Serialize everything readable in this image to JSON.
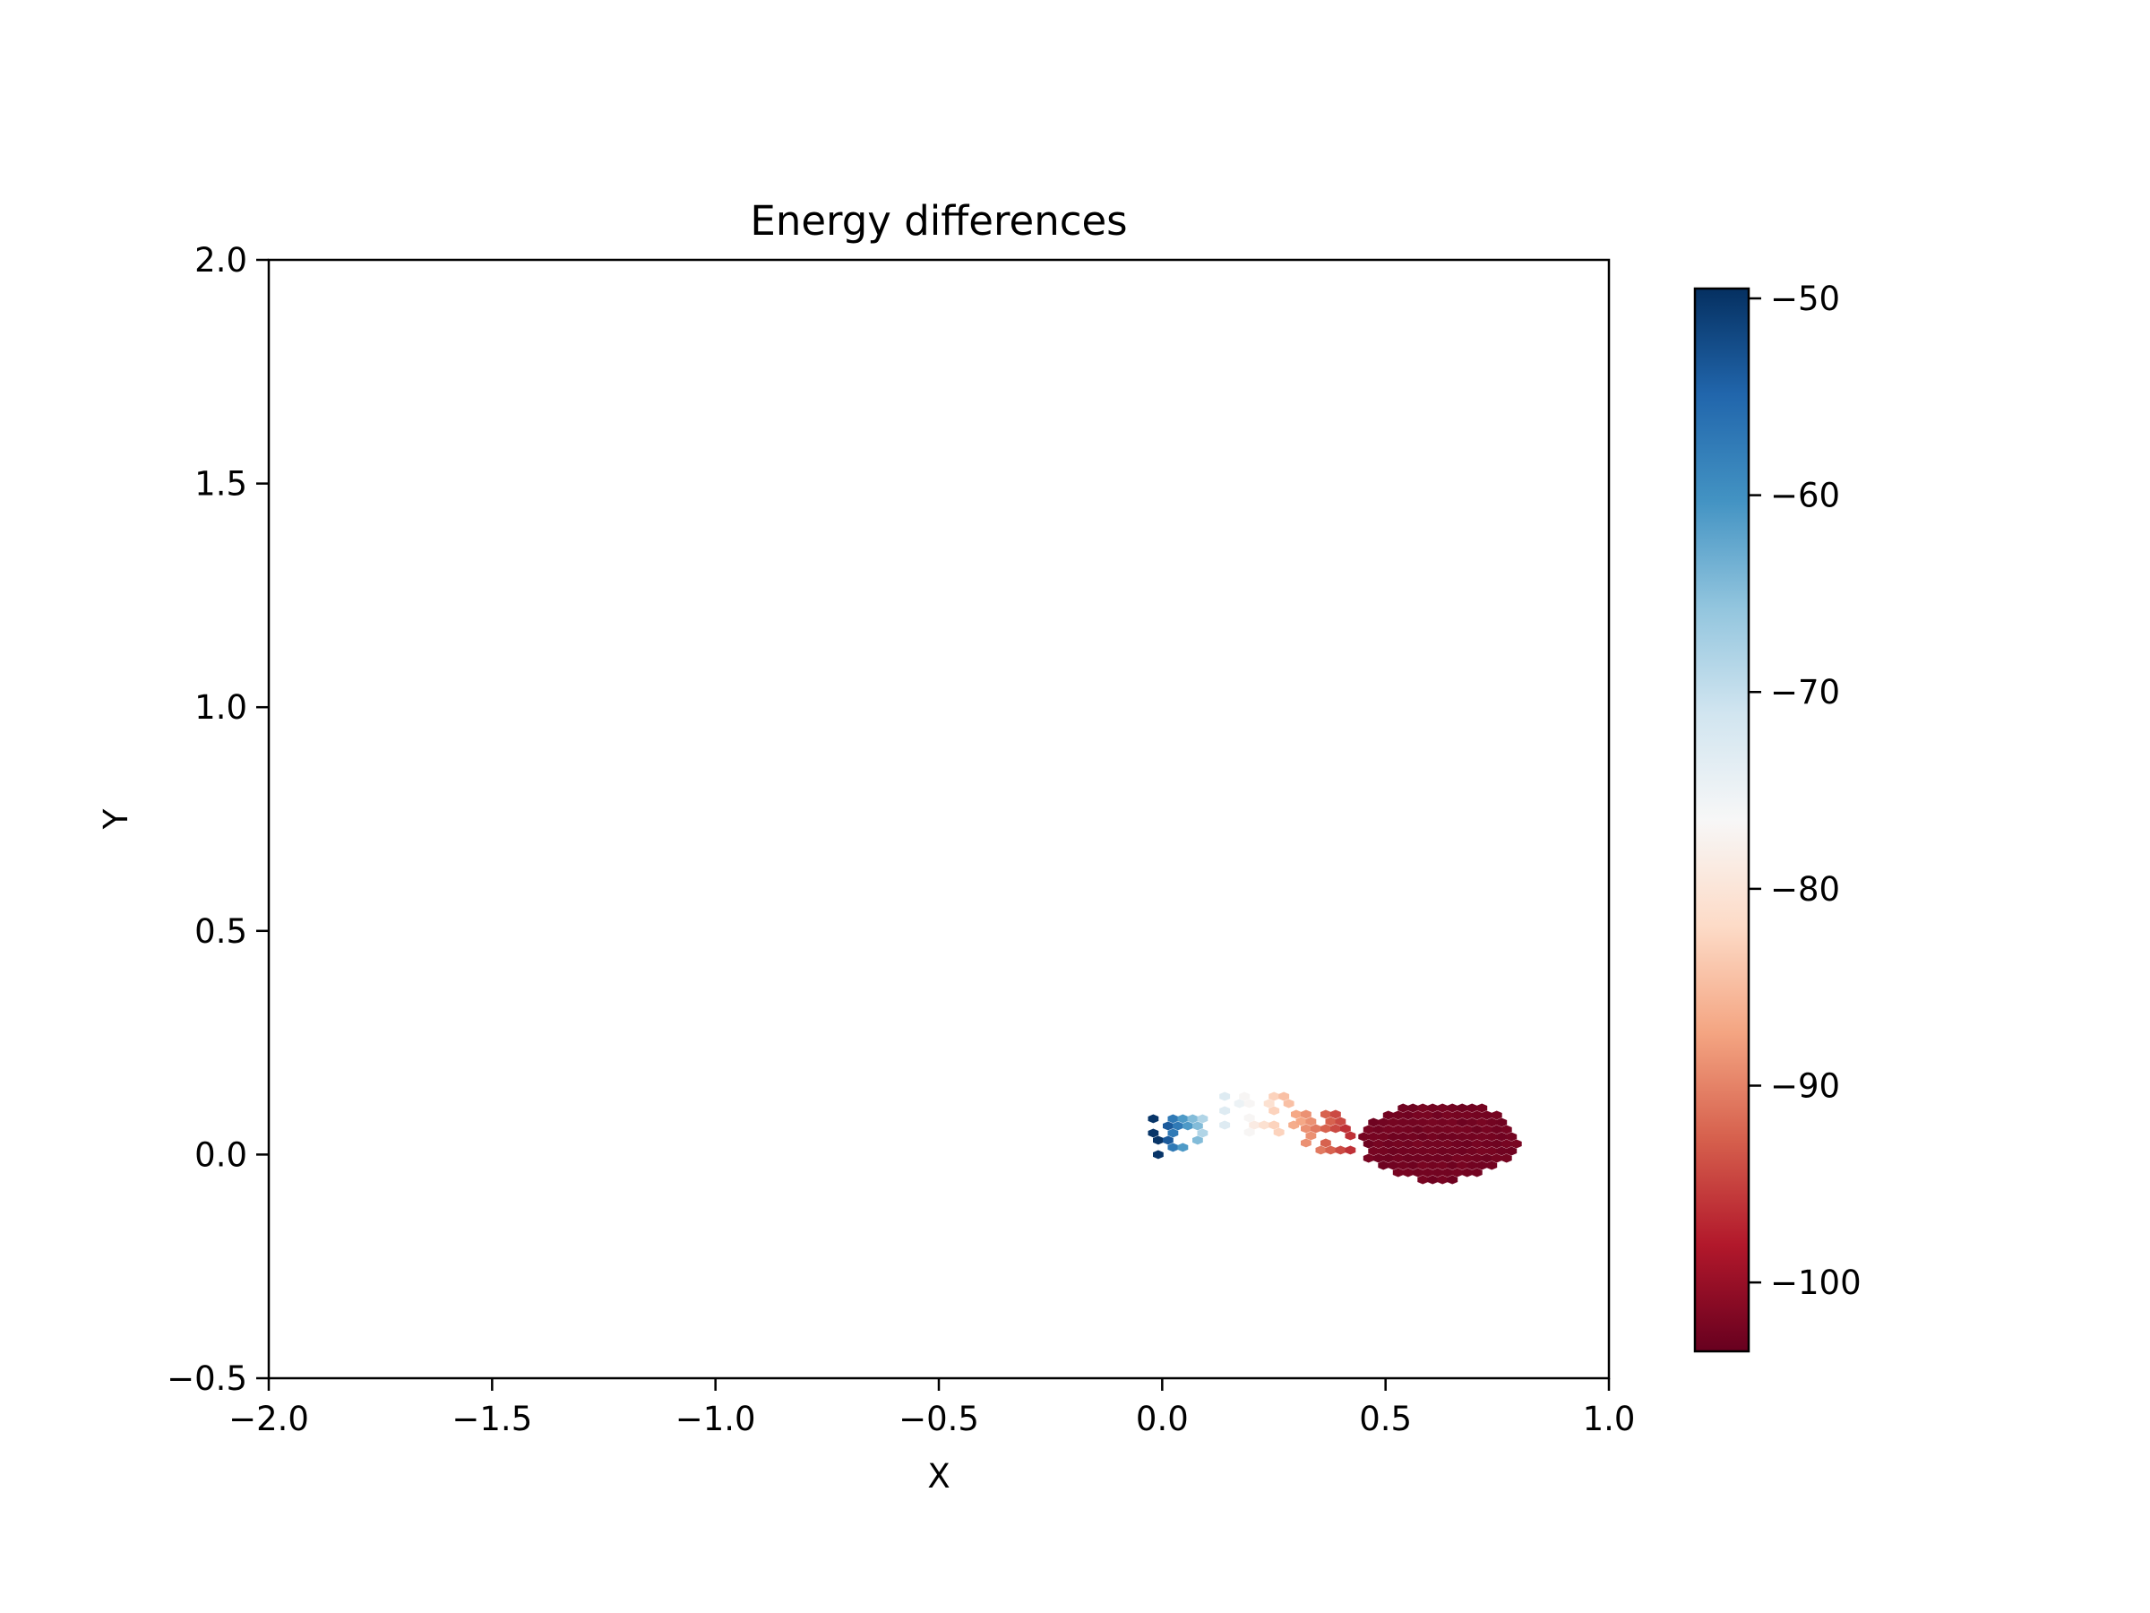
{
  "chart_data": {
    "type": "heatmap",
    "subtype": "hexbin",
    "title": "Energy differences",
    "xlabel": "X",
    "ylabel": "Y",
    "xlim": [
      -2.0,
      1.0
    ],
    "ylim": [
      -0.5,
      2.0
    ],
    "x_ticks": [
      -2.0,
      -1.5,
      -1.0,
      -0.5,
      0.0,
      0.5,
      1.0
    ],
    "x_tick_labels": [
      "−2.0",
      "−1.5",
      "−1.0",
      "−0.5",
      "0.0",
      "0.5",
      "1.0"
    ],
    "y_ticks": [
      -0.5,
      0.0,
      0.5,
      1.0,
      1.5,
      2.0
    ],
    "y_tick_labels": [
      "−0.5",
      "0.0",
      "0.5",
      "1.0",
      "1.5",
      "2.0"
    ],
    "grid": false,
    "colormap": "RdBu",
    "colormap_stops": [
      "#67001f",
      "#b2182b",
      "#d6604d",
      "#f4a582",
      "#fddbc7",
      "#f7f7f7",
      "#d1e5f0",
      "#92c5de",
      "#4393c3",
      "#2166ac",
      "#053061"
    ],
    "colorbar": {
      "range": [
        -103.5,
        -49.5
      ],
      "ticks": [
        -50,
        -60,
        -70,
        -80,
        -90,
        -100
      ],
      "tick_labels": [
        "−50",
        "−60",
        "−70",
        "−80",
        "−90",
        "−100"
      ],
      "placement": "right"
    },
    "clusters": [
      {
        "x": [
          -0.02,
          0.1
        ],
        "y": [
          -0.01,
          0.08
        ],
        "value_start": -50,
        "value_end": -70
      },
      {
        "x": [
          0.14,
          0.3
        ],
        "y": [
          0.04,
          0.13
        ],
        "value_start": -73,
        "value_end": -87
      },
      {
        "x": [
          0.3,
          0.42
        ],
        "y": [
          0.0,
          0.09
        ],
        "value_start": -87,
        "value_end": -97
      },
      {
        "center": [
          0.62,
          0.03
        ],
        "radius_x": 0.18,
        "radius_y": 0.09,
        "value": -103
      }
    ]
  }
}
